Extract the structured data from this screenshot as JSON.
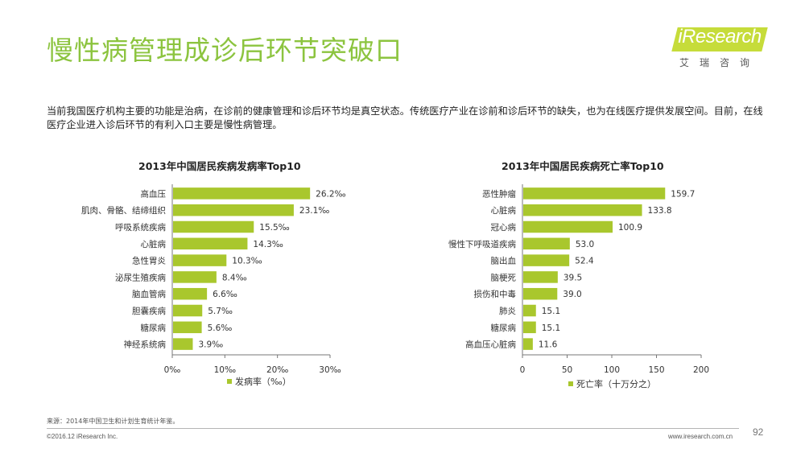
{
  "page": {
    "title": "慢性病管理成诊后环节突破口",
    "intro": "当前我国医疗机构主要的功能是治病，在诊前的健康管理和诊后环节均是真空状态。传统医疗产业在诊前和诊后环节的缺失，也为在线医疗提供发展空间。目前，在线医疗企业进入诊后环节的有利入口主要是慢性病管理。",
    "logo": {
      "text": "iResearch",
      "subtitle": "艾瑞咨询"
    },
    "colors": {
      "title": "#8cc43f",
      "bar": "#a9c72d",
      "logo_bg": "#c6dc3a"
    }
  },
  "chart_data": [
    {
      "type": "bar",
      "orientation": "horizontal",
      "title": "2013年中国居民疾病发病率Top10",
      "categories": [
        "高血压",
        "肌肉、骨骼、结缔组织",
        "呼吸系统疾病",
        "心脏病",
        "急性胃炎",
        "泌尿生殖疾病",
        "脑血管病",
        "胆囊疾病",
        "糖尿病",
        "神经系统病"
      ],
      "values": [
        26.2,
        23.1,
        15.5,
        14.3,
        10.3,
        8.4,
        6.6,
        5.7,
        5.6,
        3.9
      ],
      "value_labels": [
        "26.2‰",
        "23.1‰",
        "15.5‰",
        "14.3‰",
        "10.3‰",
        "8.4‰",
        "6.6‰",
        "5.7‰",
        "5.6‰",
        "3.9‰"
      ],
      "xlim": [
        0,
        30
      ],
      "ticks": [
        0,
        10,
        20,
        30
      ],
      "tick_labels": [
        "0‰",
        "10‰",
        "20‰",
        "30‰"
      ],
      "legend": "发病率（‰）",
      "grid": false
    },
    {
      "type": "bar",
      "orientation": "horizontal",
      "title": "2013年中国居民疾病死亡率Top10",
      "categories": [
        "恶性肿瘤",
        "心脏病",
        "冠心病",
        "慢性下呼吸道疾病",
        "脑出血",
        "脑梗死",
        "损伤和中毒",
        "肺炎",
        "糖尿病",
        "高血压心脏病"
      ],
      "values": [
        159.7,
        133.8,
        100.9,
        53.0,
        52.4,
        39.5,
        39.0,
        15.1,
        15.1,
        11.6
      ],
      "value_labels": [
        "159.7",
        "133.8",
        "100.9",
        "53.0",
        "52.4",
        "39.5",
        "39.0",
        "15.1",
        "15.1",
        "11.6"
      ],
      "xlim": [
        0,
        200
      ],
      "ticks": [
        0,
        50,
        100,
        150,
        200
      ],
      "tick_labels": [
        "0",
        "50",
        "100",
        "150",
        "200"
      ],
      "legend": "死亡率（十万分之）",
      "grid": false
    }
  ],
  "footer": {
    "source": "来源：2014年中国卫生和计划生育统计年鉴。",
    "copyright": "©2016.12 iResearch Inc.",
    "url": "www.iresearch.com.cn",
    "page_number": "92"
  }
}
